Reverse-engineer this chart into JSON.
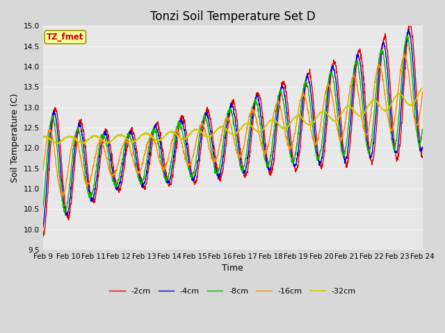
{
  "title": "Tonzi Soil Temperature Set D",
  "xlabel": "Time",
  "ylabel": "Soil Temperature (C)",
  "ylim": [
    9.5,
    15.0
  ],
  "annotation": "TZ_fmet",
  "legend_labels": [
    "-2cm",
    "-4cm",
    "-8cm",
    "-16cm",
    "-32cm"
  ],
  "line_colors": [
    "#dd0000",
    "#0000cc",
    "#00bb00",
    "#ff8800",
    "#cccc00"
  ],
  "plot_bg": "#e8e8e8",
  "fig_bg": "#d8d8d8",
  "x_tick_labels": [
    "Feb 9",
    "Feb 10",
    "Feb 11",
    "Feb 12",
    "Feb 13",
    "Feb 14",
    "Feb 15",
    "Feb 16",
    "Feb 17",
    "Feb 18",
    "Feb 19",
    "Feb 20",
    "Feb 21",
    "Feb 22",
    "Feb 23",
    "Feb 24"
  ],
  "grid_color": "#f5f5f5",
  "title_fontsize": 12,
  "label_fontsize": 9,
  "tick_fontsize": 7.5
}
